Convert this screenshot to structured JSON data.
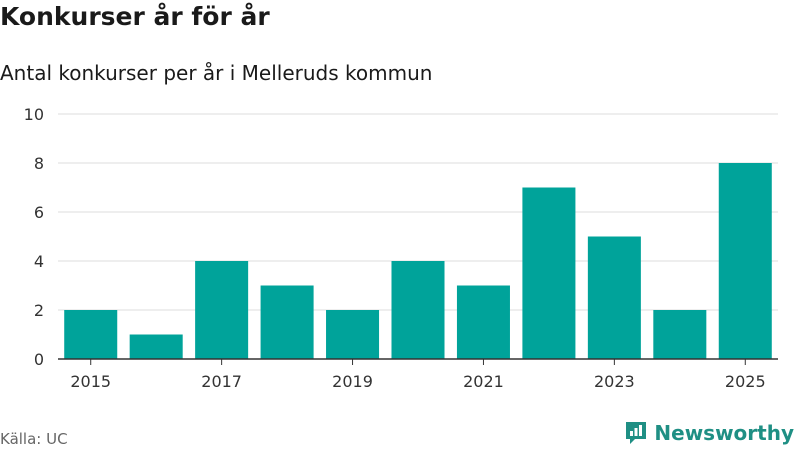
{
  "header": {
    "title": "Konkurser år för år",
    "subtitle": "Antal konkurser per år i Melleruds kommun"
  },
  "footer": {
    "source": "Källa: UC",
    "brand": "Newsworthy",
    "brand_icon": "newsworthy-logo-icon"
  },
  "colors": {
    "bar": "#00a39a",
    "grid": "#dddddd",
    "axis": "#333333",
    "brand": "#1f8f84"
  },
  "chart_data": {
    "type": "bar",
    "title": "Konkurser år för år",
    "subtitle": "Antal konkurser per år i Melleruds kommun",
    "categories": [
      "2015",
      "2016",
      "2017",
      "2018",
      "2019",
      "2020",
      "2021",
      "2022",
      "2023",
      "2024",
      "2025"
    ],
    "values": [
      2,
      1,
      4,
      3,
      2,
      4,
      3,
      7,
      5,
      2,
      8
    ],
    "xtick_labels": [
      "2015",
      "2017",
      "2019",
      "2021",
      "2023",
      "2025"
    ],
    "ytick_labels": [
      "0",
      "2",
      "4",
      "6",
      "8",
      "10"
    ],
    "ylim": [
      0,
      10
    ],
    "xlabel": "",
    "ylabel": "",
    "grid": true
  }
}
